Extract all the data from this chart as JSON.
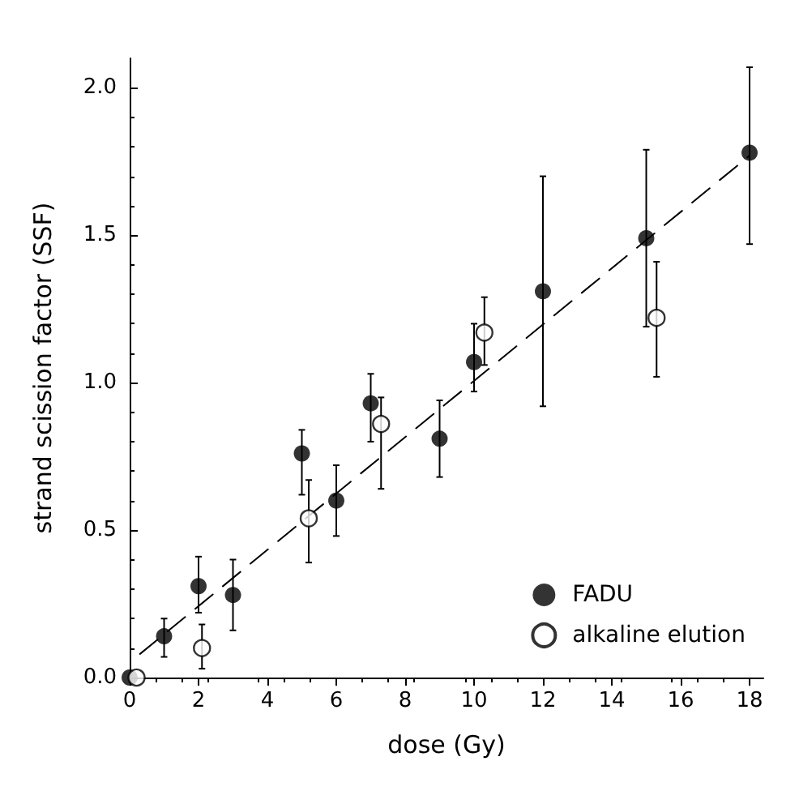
{
  "chart_data": {
    "type": "scatter",
    "xlabel": "dose (Gy)",
    "ylabel": "strand scission factor (SSF)",
    "xlim": [
      0,
      18.4
    ],
    "xticks": [
      0,
      2,
      4,
      6,
      8,
      10,
      12,
      14,
      16,
      18
    ],
    "ylim": [
      0,
      2.1
    ],
    "yticks": [
      {
        "value": 0,
        "label": "0.0"
      },
      0.5,
      {
        "value": 1,
        "label": "1.0"
      },
      1.5,
      {
        "value": 2,
        "label": "2.0"
      }
    ],
    "grid": false,
    "legend": "bottom right",
    "marker": "circle",
    "series": [
      {
        "name": "FADU",
        "color": "#000000",
        "x": [
          0,
          1,
          2,
          3,
          5,
          6,
          7,
          9,
          10,
          12,
          15,
          18
        ],
        "values": [
          0.0,
          0.14,
          0.31,
          0.28,
          0.76,
          0.6,
          0.93,
          0.81,
          1.07,
          1.31,
          1.49,
          1.78
        ],
        "errors": [
          null,
          [
            0.07,
            0.2
          ],
          [
            0.22,
            0.41
          ],
          [
            0.16,
            0.4
          ],
          [
            0.62,
            0.84
          ],
          [
            0.48,
            0.72
          ],
          [
            0.8,
            1.03
          ],
          [
            0.68,
            0.94
          ],
          [
            0.97,
            1.2
          ],
          [
            0.92,
            1.7
          ],
          [
            1.19,
            1.79
          ],
          [
            1.47,
            2.07
          ]
        ]
      },
      {
        "name": "alkaline elution",
        "color": "#000000",
        "x": [
          0.2,
          2.1,
          5.2,
          7.3,
          10.3,
          15.3
        ],
        "values": [
          0.0,
          0.1,
          0.54,
          0.86,
          1.17,
          1.22
        ],
        "errors": [
          null,
          [
            0.03,
            0.18
          ],
          [
            0.39,
            0.67
          ],
          [
            0.64,
            0.95
          ],
          [
            1.06,
            1.29
          ],
          [
            1.02,
            1.41
          ]
        ]
      },
      {
        "type": "line",
        "color": "#000000",
        "line_style": "dashed",
        "marker": "none",
        "x": [
          0.3,
          18
        ],
        "values": [
          0.08,
          1.77
        ]
      }
    ]
  }
}
